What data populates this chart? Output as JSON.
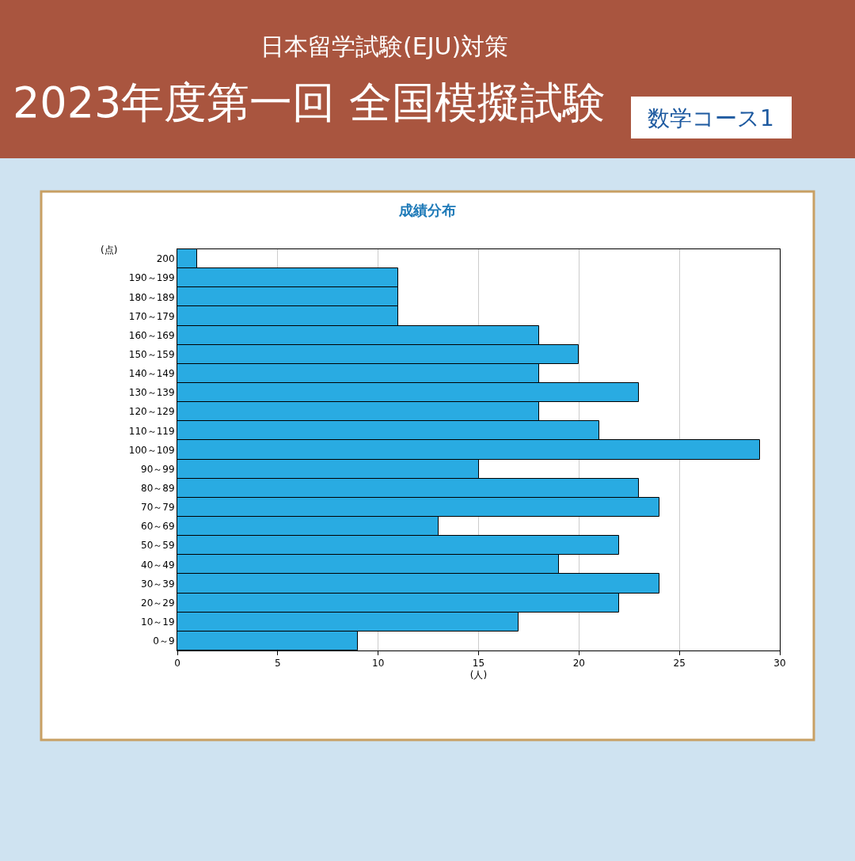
{
  "chart_data": {
    "type": "bar",
    "orientation": "horizontal",
    "title": "成績分布",
    "annotations": [
      "日本留学試験(EJU)対策",
      "2023年度第一回 全国模擬試験",
      "数学コース1"
    ],
    "ylabel": "(点)",
    "xlabel": "(人)",
    "categories": [
      "200",
      "190～199",
      "180～189",
      "170～179",
      "160～169",
      "150～159",
      "140～149",
      "130～139",
      "120～129",
      "110～119",
      "100～109",
      "90～99",
      "80～89",
      "70～79",
      "60～69",
      "50～59",
      "40～49",
      "30～39",
      "20～29",
      "10～19",
      "0～9"
    ],
    "values": [
      1,
      11,
      11,
      11,
      18,
      20,
      18,
      23,
      18,
      21,
      29,
      15,
      23,
      24,
      13,
      22,
      19,
      24,
      22,
      17,
      9
    ],
    "color": "#29abe2",
    "xlim": [
      0,
      30
    ],
    "xticks": [
      0,
      5,
      10,
      15,
      20,
      25,
      30
    ],
    "grid": "x",
    "legend": false
  }
}
